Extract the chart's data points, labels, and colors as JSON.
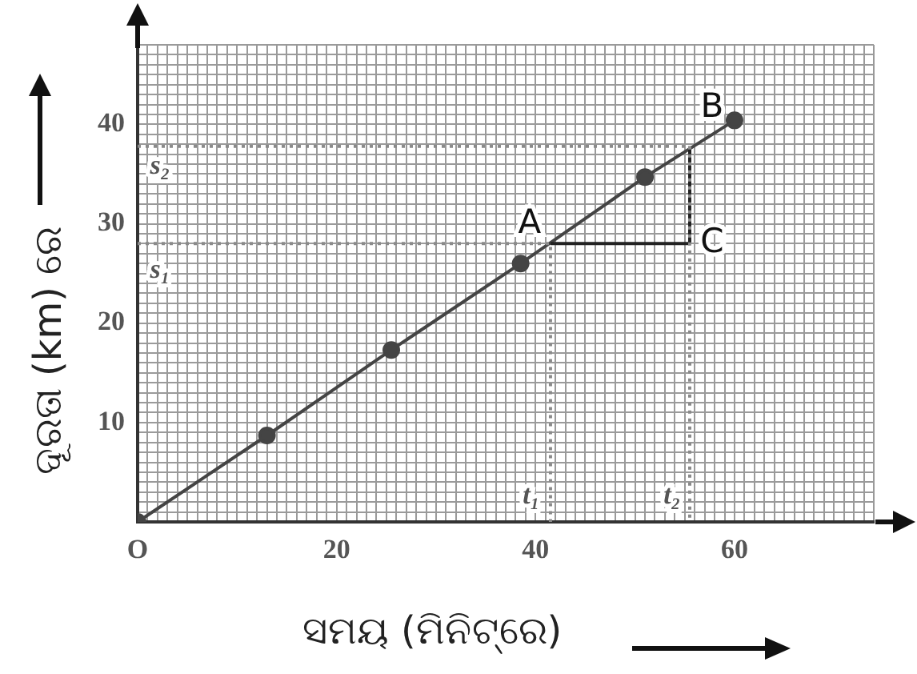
{
  "chart_data": {
    "type": "line",
    "xlabel": "ସମୟ (ମିନିଟ୍ରେ)",
    "ylabel": "ଦୂରତା (km) ରେ",
    "xlim": [
      0,
      74
    ],
    "ylim": [
      0,
      48
    ],
    "xticks": [
      {
        "value": 0,
        "label": "O"
      },
      {
        "value": 1,
        "label": null
      },
      {
        "value": 2,
        "label": null
      },
      {
        "value": 3,
        "label": null
      },
      {
        "value": 4,
        "label": null
      },
      {
        "value": 5,
        "label": null
      },
      {
        "value": 6,
        "label": null
      },
      {
        "value": 7,
        "label": null
      },
      {
        "value": 8,
        "label": null
      },
      {
        "value": 9,
        "label": null
      },
      {
        "value": 10,
        "label": null
      },
      {
        "value": 11,
        "label": null
      },
      {
        "value": 12,
        "label": null
      },
      {
        "value": 13,
        "label": null
      },
      {
        "value": 14,
        "label": null
      },
      {
        "value": 15,
        "label": null
      },
      {
        "value": 16,
        "label": null
      },
      {
        "value": 17,
        "label": null
      },
      {
        "value": 18,
        "label": null
      },
      {
        "value": 19,
        "label": null
      },
      20,
      {
        "value": 21,
        "label": null
      },
      {
        "value": 22,
        "label": null
      },
      {
        "value": 23,
        "label": null
      },
      {
        "value": 24,
        "label": null
      },
      {
        "value": 25,
        "label": null
      },
      {
        "value": 26,
        "label": null
      },
      {
        "value": 27,
        "label": null
      },
      {
        "value": 28,
        "label": null
      },
      {
        "value": 29,
        "label": null
      },
      {
        "value": 30,
        "label": null
      },
      {
        "value": 31,
        "label": null
      },
      {
        "value": 32,
        "label": null
      },
      {
        "value": 33,
        "label": null
      },
      {
        "value": 34,
        "label": null
      },
      {
        "value": 35,
        "label": null
      },
      {
        "value": 36,
        "label": null
      },
      {
        "value": 37,
        "label": null
      },
      {
        "value": 38,
        "label": null
      },
      {
        "value": 39,
        "label": null
      },
      40,
      {
        "value": 41,
        "label": null
      },
      {
        "value": 42,
        "label": null
      },
      {
        "value": 43,
        "label": null
      },
      {
        "value": 44,
        "label": null
      },
      {
        "value": 45,
        "label": null
      },
      {
        "value": 46,
        "label": null
      },
      {
        "value": 47,
        "label": null
      },
      {
        "value": 48,
        "label": null
      },
      {
        "value": 49,
        "label": null
      },
      {
        "value": 50,
        "label": null
      },
      {
        "value": 51,
        "label": null
      },
      {
        "value": 52,
        "label": null
      },
      {
        "value": 53,
        "label": null
      },
      {
        "value": 54,
        "label": null
      },
      {
        "value": 55,
        "label": null
      },
      {
        "value": 56,
        "label": null
      },
      {
        "value": 57,
        "label": null
      },
      {
        "value": 58,
        "label": null
      },
      {
        "value": 59,
        "label": null
      },
      60,
      {
        "value": 61,
        "label": null
      },
      {
        "value": 62,
        "label": null
      },
      {
        "value": 63,
        "label": null
      },
      {
        "value": 64,
        "label": null
      },
      {
        "value": 65,
        "label": null
      },
      {
        "value": 66,
        "label": null
      },
      {
        "value": 67,
        "label": null
      },
      {
        "value": 68,
        "label": null
      },
      {
        "value": 69,
        "label": null
      },
      {
        "value": 70,
        "label": null
      },
      {
        "value": 71,
        "label": null
      },
      {
        "value": 72,
        "label": null
      },
      {
        "value": 73,
        "label": null
      },
      {
        "value": 74,
        "label": null
      }
    ],
    "yticks": [
      {
        "value": 0,
        "label": null
      },
      {
        "value": 1,
        "label": null
      },
      {
        "value": 2,
        "label": null
      },
      {
        "value": 3,
        "label": null
      },
      {
        "value": 4,
        "label": null
      },
      {
        "value": 5,
        "label": null
      },
      {
        "value": 6,
        "label": null
      },
      {
        "value": 7,
        "label": null
      },
      {
        "value": 8,
        "label": null
      },
      {
        "value": 9,
        "label": null
      },
      10,
      {
        "value": 11,
        "label": null
      },
      {
        "value": 12,
        "label": null
      },
      {
        "value": 13,
        "label": null
      },
      {
        "value": 14,
        "label": null
      },
      {
        "value": 15,
        "label": null
      },
      {
        "value": 16,
        "label": null
      },
      {
        "value": 17,
        "label": null
      },
      {
        "value": 18,
        "label": null
      },
      {
        "value": 19,
        "label": null
      },
      20,
      {
        "value": 21,
        "label": null
      },
      {
        "value": 22,
        "label": null
      },
      {
        "value": 23,
        "label": null
      },
      {
        "value": 24,
        "label": null
      },
      {
        "value": 25,
        "label": null
      },
      {
        "value": 26,
        "label": null
      },
      {
        "value": 27,
        "label": null
      },
      {
        "value": 28,
        "label": null
      },
      {
        "value": 29,
        "label": null
      },
      30,
      {
        "value": 31,
        "label": null
      },
      {
        "value": 32,
        "label": null
      },
      {
        "value": 33,
        "label": null
      },
      {
        "value": 34,
        "label": null
      },
      {
        "value": 35,
        "label": null
      },
      {
        "value": 36,
        "label": null
      },
      {
        "value": 37,
        "label": null
      },
      {
        "value": 38,
        "label": null
      },
      {
        "value": 39,
        "label": null
      },
      40,
      {
        "value": 41,
        "label": null
      },
      {
        "value": 42,
        "label": null
      },
      {
        "value": 43,
        "label": null
      },
      {
        "value": 44,
        "label": null
      },
      {
        "value": 45,
        "label": null
      },
      {
        "value": 46,
        "label": null
      },
      {
        "value": 47,
        "label": null
      },
      {
        "value": 48,
        "label": null
      }
    ],
    "grid": true,
    "legend": false,
    "series": [
      {
        "color": "#8a8a8a",
        "x": [
          0,
          41.5,
          41.5
        ],
        "values": [
          28,
          28,
          0
        ],
        "marker": "none",
        "line_style": "dotted"
      },
      {
        "color": "#8a8a8a",
        "x": [
          0,
          55.5,
          55.5
        ],
        "values": [
          37.8,
          37.8,
          0
        ],
        "marker": "none",
        "line_style": "dotted"
      },
      {
        "color": "#222222",
        "x": [
          41.5,
          55.5,
          55.5
        ],
        "values": [
          28,
          28,
          37.8
        ],
        "marker": "none",
        "line_style": "solid"
      },
      {
        "color": "#444444",
        "x": [
          0,
          13,
          25.5,
          38.5,
          51,
          60
        ],
        "values": [
          0,
          8.7,
          17.3,
          26,
          34.7,
          40.4
        ],
        "marker": "circle",
        "line_style": "solid"
      }
    ],
    "annotations": [
      {
        "text": "A",
        "x": 41.5,
        "y": 28
      },
      {
        "text": "B",
        "x": 55.5,
        "y": 37.8
      },
      {
        "text": "C",
        "x": 55.5,
        "y": 28
      },
      {
        "text": "s₂",
        "x": 0,
        "y": 37.8
      },
      {
        "text": "s₁",
        "x": 0,
        "y": 28
      },
      {
        "text": "t₁",
        "x": 41.5,
        "y": 0
      },
      {
        "text": "t₂",
        "x": 55.5,
        "y": 0
      }
    ]
  }
}
